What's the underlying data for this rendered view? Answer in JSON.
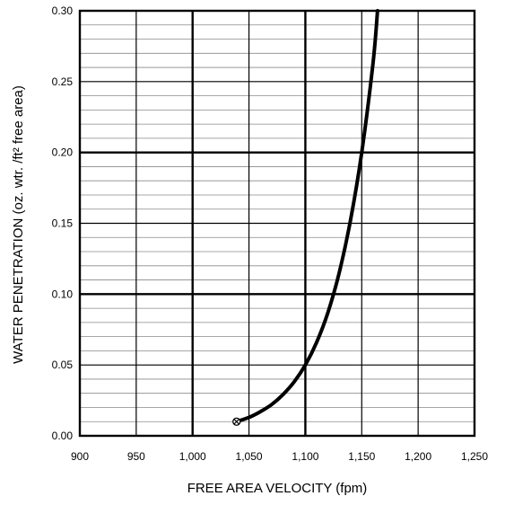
{
  "chart_data": {
    "type": "line",
    "title": "",
    "xlabel": "FREE AREA VELOCITY (fpm)",
    "ylabel": "WATER PENETRATION (oz. wtr. /ft² free area)",
    "xlim": [
      900,
      1250
    ],
    "ylim": [
      0,
      0.3
    ],
    "x_ticks": [
      900,
      950,
      1000,
      1050,
      1100,
      1150,
      1200,
      1250
    ],
    "x_tick_labels": [
      "900",
      "950",
      "1,000",
      "1,050",
      "1,100",
      "1,150",
      "1,200",
      "1,250"
    ],
    "y_ticks": [
      0,
      0.05,
      0.1,
      0.15,
      0.2,
      0.25,
      0.3
    ],
    "y_tick_labels": [
      "0.00",
      "0.05",
      "0.10",
      "0.15",
      "0.20",
      "0.25",
      "0.30"
    ],
    "grid": true,
    "minor_grid_y_step": 0.01,
    "series": [
      {
        "color": "#000000",
        "x": [
          1039,
          1050,
          1060,
          1070,
          1080,
          1090,
          1100,
          1110,
          1120,
          1130,
          1140,
          1150,
          1160,
          1164
        ],
        "y": [
          0.01,
          0.013,
          0.017,
          0.022,
          0.029,
          0.038,
          0.05,
          0.066,
          0.087,
          0.115,
          0.152,
          0.2,
          0.263,
          0.3
        ]
      }
    ],
    "start_marker": {
      "x": 1039,
      "y": 0.01,
      "symbol": "circle-x"
    }
  }
}
